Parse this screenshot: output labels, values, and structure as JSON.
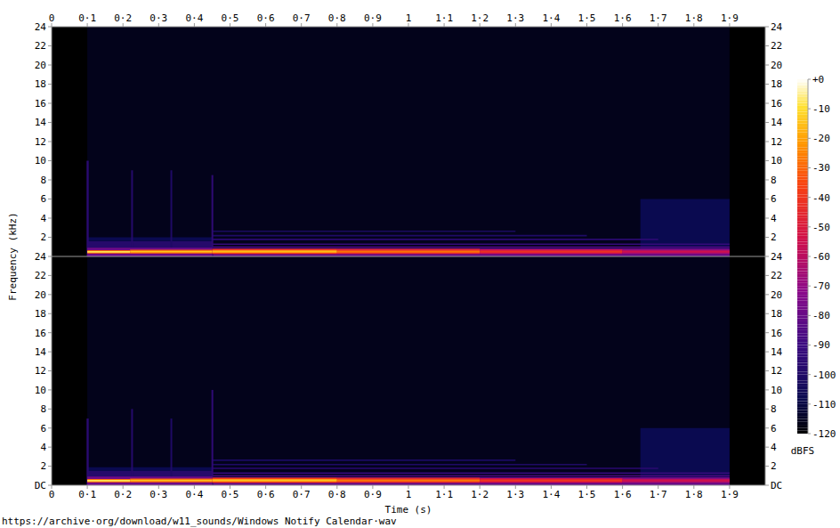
{
  "chart_data": {
    "type": "spectrogram",
    "xlabel": "Time (s)",
    "ylabel": "Frequency (kHz)",
    "annotations": [
      "https://archive·org/download/w11_sounds/Windows Notify Calendar·wav"
    ],
    "xlim": [
      0,
      2
    ],
    "xticks": [
      0,
      {
        "value": 0.1,
        "label": "0·1"
      },
      {
        "value": 0.2,
        "label": "0·2"
      },
      {
        "value": 0.3,
        "label": "0·3"
      },
      {
        "value": 0.4,
        "label": "0·4"
      },
      {
        "value": 0.5,
        "label": "0·5"
      },
      {
        "value": 0.6,
        "label": "0·6"
      },
      {
        "value": 0.7,
        "label": "0·7"
      },
      {
        "value": 0.8,
        "label": "0·8"
      },
      {
        "value": 0.9,
        "label": "0·9"
      },
      1,
      {
        "value": 1.1,
        "label": "1·1"
      },
      {
        "value": 1.2,
        "label": "1·2"
      },
      {
        "value": 1.3,
        "label": "1·3"
      },
      {
        "value": 1.4,
        "label": "1·4"
      },
      {
        "value": 1.5,
        "label": "1·5"
      },
      {
        "value": 1.6,
        "label": "1·6"
      },
      {
        "value": 1.7,
        "label": "1·7"
      },
      {
        "value": 1.8,
        "label": "1·8"
      },
      {
        "value": 1.9,
        "label": "1·9"
      }
    ],
    "ylim": [
      0,
      24
    ],
    "channels": [
      {
        "yticks": [
          2,
          4,
          6,
          8,
          10,
          12,
          14,
          16,
          18,
          20,
          22,
          24
        ],
        "cells": [
          [
            0.1,
            1.9,
            0,
            24,
            -116
          ],
          [
            1.65,
            1.9,
            0,
            6,
            -108
          ],
          [
            0.1,
            0.45,
            0,
            1.6,
            -98
          ],
          [
            0.1,
            0.45,
            1.6,
            2.0,
            -108
          ],
          [
            0.45,
            1.3,
            2.55,
            2.7,
            -102
          ],
          [
            0.45,
            1.5,
            2.1,
            2.25,
            -100
          ],
          [
            0.45,
            1.7,
            1.7,
            1.85,
            -96
          ],
          [
            0.45,
            1.9,
            1.2,
            1.35,
            -92
          ],
          [
            0.45,
            1.9,
            0.9,
            1.05,
            -85
          ],
          [
            0.45,
            1.9,
            0,
            0.85,
            -80
          ],
          [
            0.098,
            0.104,
            0,
            10,
            -96
          ],
          [
            0.223,
            0.228,
            0,
            9,
            -98
          ],
          [
            0.333,
            0.338,
            0,
            9,
            -100
          ],
          [
            0.448,
            0.453,
            0,
            8.5,
            -94
          ],
          [
            0.1,
            0.45,
            0,
            0.9,
            -78
          ],
          [
            0.1,
            0.22,
            0.3,
            0.65,
            -30
          ],
          [
            0.1,
            0.22,
            0.4,
            0.55,
            -8
          ],
          [
            0.22,
            0.45,
            0.3,
            0.7,
            -30
          ],
          [
            0.22,
            0.45,
            0.42,
            0.58,
            -14
          ],
          [
            0.45,
            0.8,
            0.25,
            0.8,
            -38
          ],
          [
            0.45,
            0.8,
            0.4,
            0.62,
            -16
          ],
          [
            0.8,
            1.2,
            0.25,
            0.8,
            -45
          ],
          [
            0.8,
            1.2,
            0.4,
            0.6,
            -28
          ],
          [
            1.2,
            1.6,
            0.25,
            0.75,
            -55
          ],
          [
            1.2,
            1.6,
            0.4,
            0.6,
            -42
          ],
          [
            1.6,
            1.9,
            0.25,
            0.7,
            -65
          ],
          [
            1.6,
            1.9,
            0.4,
            0.6,
            -55
          ]
        ]
      },
      {
        "yticks": [
          {
            "value": 0,
            "label": "DC"
          },
          2,
          4,
          6,
          8,
          10,
          12,
          14,
          16,
          18,
          20,
          22,
          24
        ],
        "cells": [
          [
            0.1,
            1.9,
            0,
            24,
            -116
          ],
          [
            1.65,
            1.9,
            0,
            6,
            -108
          ],
          [
            0.1,
            0.45,
            0,
            1.5,
            -98
          ],
          [
            0.1,
            0.45,
            1.5,
            1.9,
            -108
          ],
          [
            0.45,
            1.3,
            2.55,
            2.7,
            -102
          ],
          [
            0.45,
            1.5,
            2.1,
            2.25,
            -100
          ],
          [
            0.45,
            1.7,
            1.7,
            1.85,
            -96
          ],
          [
            0.45,
            1.9,
            1.2,
            1.35,
            -92
          ],
          [
            0.45,
            1.9,
            0.9,
            1.05,
            -85
          ],
          [
            0.45,
            1.9,
            0,
            0.85,
            -80
          ],
          [
            0.098,
            0.104,
            0,
            7,
            -96
          ],
          [
            0.223,
            0.228,
            0,
            8,
            -98
          ],
          [
            0.333,
            0.338,
            0,
            7,
            -100
          ],
          [
            0.448,
            0.453,
            0,
            10,
            -94
          ],
          [
            0.1,
            0.45,
            0,
            0.9,
            -78
          ],
          [
            0.1,
            0.22,
            0.3,
            0.65,
            -28
          ],
          [
            0.1,
            0.22,
            0.4,
            0.55,
            -8
          ],
          [
            0.22,
            0.45,
            0.3,
            0.7,
            -30
          ],
          [
            0.22,
            0.45,
            0.42,
            0.58,
            -15
          ],
          [
            0.45,
            0.8,
            0.25,
            0.8,
            -36
          ],
          [
            0.45,
            0.8,
            0.4,
            0.62,
            -15
          ],
          [
            0.8,
            1.2,
            0.25,
            0.8,
            -44
          ],
          [
            0.8,
            1.2,
            0.4,
            0.6,
            -27
          ],
          [
            1.2,
            1.6,
            0.25,
            0.75,
            -54
          ],
          [
            1.2,
            1.6,
            0.4,
            0.6,
            -40
          ],
          [
            1.6,
            1.9,
            0.25,
            0.7,
            -64
          ],
          [
            1.6,
            1.9,
            0.4,
            0.6,
            -54
          ]
        ]
      }
    ],
    "colorbar": {
      "label": "dBFS",
      "range": [
        -120,
        0
      ],
      "ticks": [
        {
          "value": 0,
          "label": "+0"
        },
        -10,
        -20,
        -30,
        -40,
        -50,
        -60,
        -70,
        -80,
        -90,
        -100,
        -110,
        -120
      ]
    }
  }
}
